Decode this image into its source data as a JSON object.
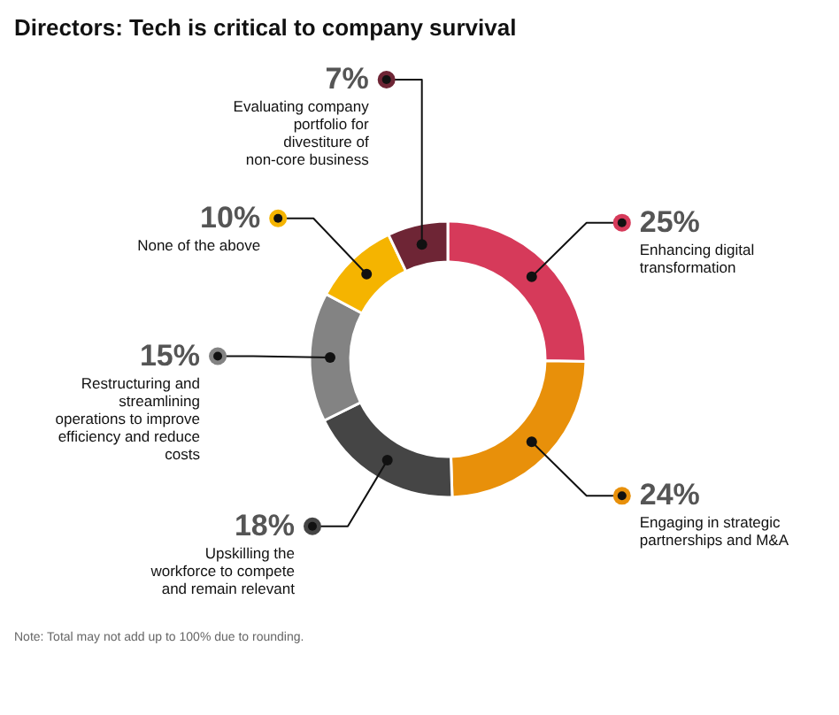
{
  "chart_data": {
    "type": "donut",
    "title": "Directors: Tech is critical to company survival",
    "categories": [
      "Enhancing digital transformation",
      "Engaging in strategic partnerships and M&A",
      "Upskilling the workforce to compete and remain relevant",
      "Restructuring and streamlining operations to improve efficiency and reduce costs",
      "None of the above",
      "Evaluating company portfolio for divestiture of non-core business"
    ],
    "values": [
      25,
      24,
      18,
      15,
      10,
      7
    ],
    "value_labels": [
      "25%",
      "24%",
      "18%",
      "15%",
      "10%",
      "7%"
    ],
    "colors": [
      "#d63a5a",
      "#e8900a",
      "#454545",
      "#838383",
      "#f5b400",
      "#6e2535"
    ],
    "annotations": [
      "Note: Total may not add up to 100% due to rounding."
    ]
  }
}
